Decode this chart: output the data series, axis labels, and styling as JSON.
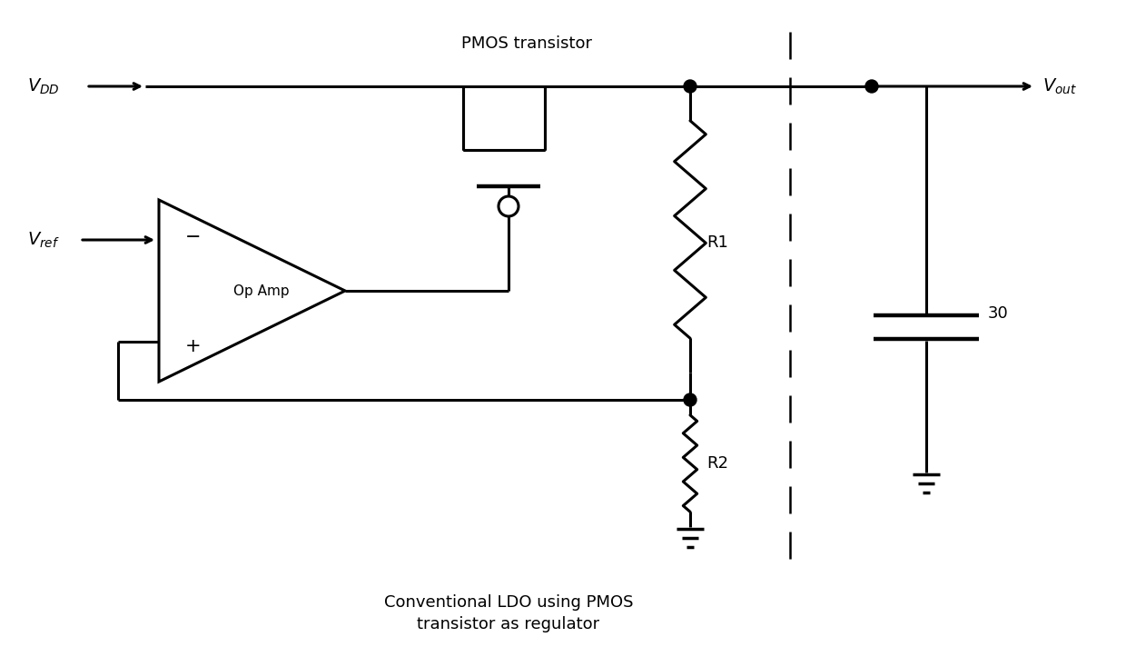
{
  "background_color": "#ffffff",
  "line_color": "#000000",
  "line_width": 2.2,
  "pmos_label": "PMOS transistor",
  "subtitle": "Conventional LDO using PMOS\ntransistor as regulator",
  "cap_label": "30",
  "fig_width": 12.4,
  "fig_height": 7.23,
  "dpi": 100
}
